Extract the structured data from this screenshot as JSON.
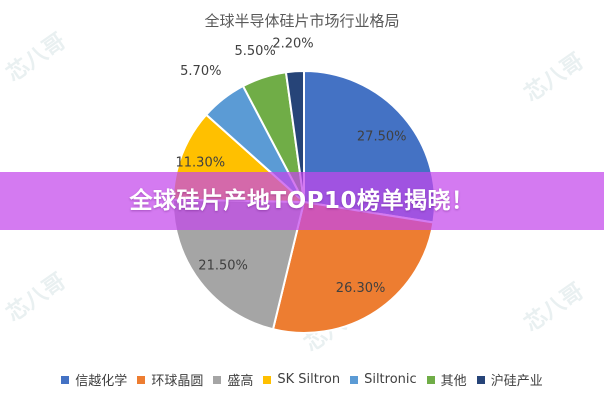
{
  "chart_data": {
    "type": "pie",
    "title": "全球半导体硅片市场行业格局",
    "categories": [
      "信越化学",
      "环球晶圆",
      "盛高",
      "SK Siltron",
      "Siltronic",
      "其他",
      "沪硅产业"
    ],
    "values": [
      27.5,
      26.3,
      21.5,
      11.3,
      5.7,
      5.5,
      2.2
    ],
    "value_labels": [
      "27.50%",
      "26.30%",
      "21.50%",
      "11.30%",
      "5.70%",
      "5.50%",
      "2.20%"
    ],
    "colors": [
      "#4472C4",
      "#ED7D31",
      "#A5A5A5",
      "#FFC000",
      "#5B9BD5",
      "#70AD47",
      "#264478"
    ],
    "legend_position": "bottom"
  },
  "banner": {
    "text": "全球硅片产地TOP10榜单揭晓！"
  },
  "watermark": {
    "text": "芯八哥"
  }
}
